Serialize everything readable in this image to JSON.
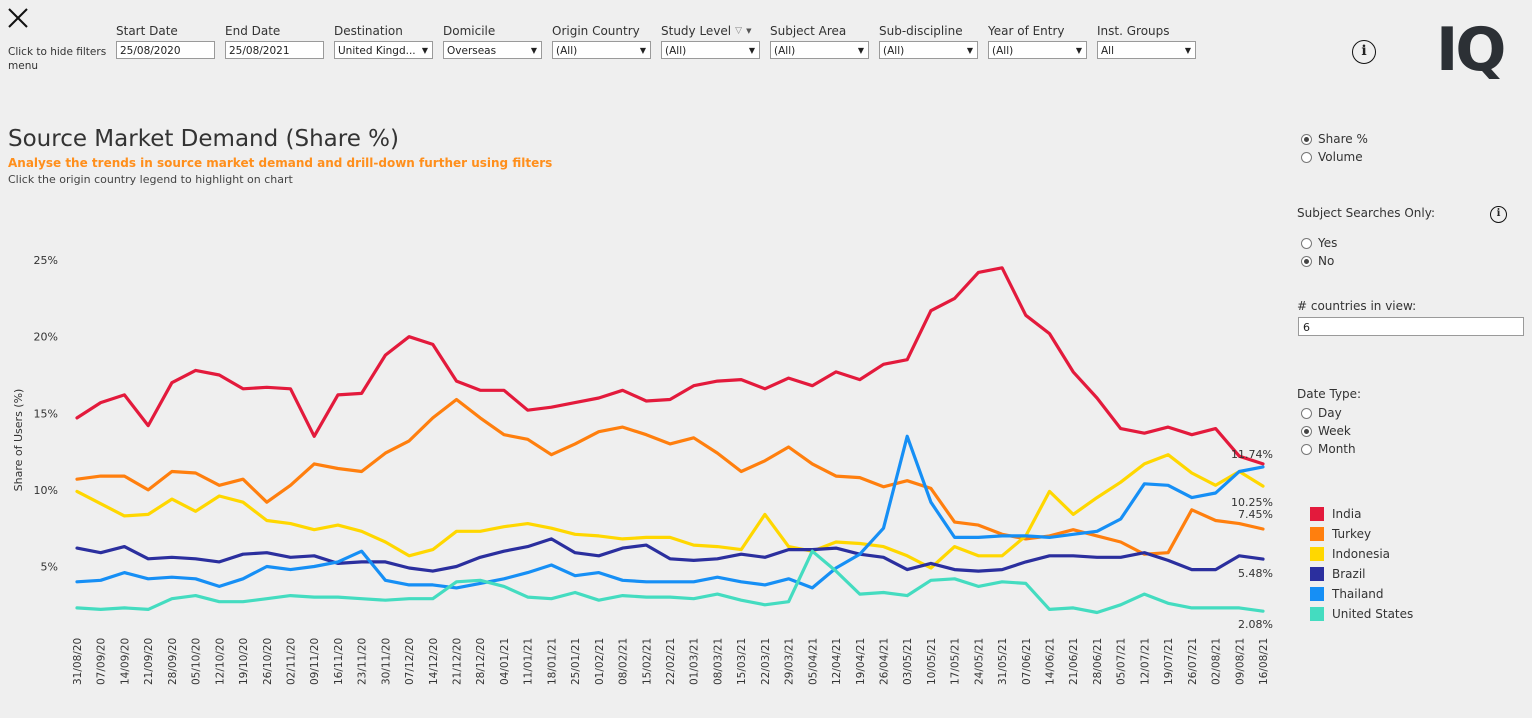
{
  "header": {
    "close_icon": "close-x-icon",
    "hide_filters_text": "Click to hide filters menu",
    "info_icon": "info-circle-icon",
    "logo_text": "IQ"
  },
  "filters": [
    {
      "label": "Start Date",
      "value": "25/08/2020",
      "kind": "text"
    },
    {
      "label": "End Date",
      "value": "25/08/2021",
      "kind": "text"
    },
    {
      "label": "Destination",
      "value": "United Kingd...",
      "kind": "select"
    },
    {
      "label": "Domicile",
      "value": "Overseas",
      "kind": "select"
    },
    {
      "label": "Origin Country",
      "value": "(All)",
      "kind": "select"
    },
    {
      "label": "Study Level",
      "value": "(All)",
      "kind": "select",
      "has_filter_icon": true
    },
    {
      "label": "Subject Area",
      "value": "(All)",
      "kind": "select"
    },
    {
      "label": "Sub-discipline",
      "value": "(All)",
      "kind": "select"
    },
    {
      "label": "Year of Entry",
      "value": "(All)",
      "kind": "select"
    },
    {
      "label": "Inst. Groups",
      "value": "All",
      "kind": "select"
    }
  ],
  "page": {
    "title": "Source Market Demand (Share %)",
    "subtitle": "Analyse the trends in source market demand and drill-down further using filters",
    "hint": "Click the origin country legend to highlight on chart"
  },
  "side_panel": {
    "measure_options": [
      {
        "label": "Share %",
        "selected": true
      },
      {
        "label": "Volume",
        "selected": false
      }
    ],
    "subject_searches_label": "Subject Searches Only:",
    "subject_options": [
      {
        "label": "Yes",
        "selected": false
      },
      {
        "label": "No",
        "selected": true
      }
    ],
    "countries_label": "# countries in view:",
    "countries_value": "6",
    "date_type_label": "Date Type:",
    "date_type_options": [
      {
        "label": "Day",
        "selected": false
      },
      {
        "label": "Week",
        "selected": true
      },
      {
        "label": "Month",
        "selected": false
      }
    ]
  },
  "chart_data": {
    "type": "line",
    "title": "Source Market Demand (Share %)",
    "ylabel": "Share of Users (%)",
    "xlabel": "",
    "ylim": [
      0,
      26
    ],
    "yticks": [
      5,
      10,
      15,
      20,
      25
    ],
    "ytick_labels": [
      "5%",
      "10%",
      "15%",
      "20%",
      "25%"
    ],
    "legend_position": "right",
    "categories": [
      "31/08/20",
      "07/09/20",
      "14/09/20",
      "21/09/20",
      "28/09/20",
      "05/10/20",
      "12/10/20",
      "19/10/20",
      "26/10/20",
      "02/11/20",
      "09/11/20",
      "16/11/20",
      "23/11/20",
      "30/11/20",
      "07/12/20",
      "14/12/20",
      "21/12/20",
      "28/12/20",
      "04/01/21",
      "11/01/21",
      "18/01/21",
      "25/01/21",
      "01/02/21",
      "08/02/21",
      "15/02/21",
      "22/02/21",
      "01/03/21",
      "08/03/21",
      "15/03/21",
      "22/03/21",
      "29/03/21",
      "05/04/21",
      "12/04/21",
      "19/04/21",
      "26/04/21",
      "03/05/21",
      "10/05/21",
      "17/05/21",
      "24/05/21",
      "31/05/21",
      "07/06/21",
      "14/06/21",
      "21/06/21",
      "28/06/21",
      "05/07/21",
      "12/07/21",
      "19/07/21",
      "26/07/21",
      "02/08/21",
      "09/08/21",
      "16/08/21"
    ],
    "series": [
      {
        "name": "India",
        "color": "#e31a3c",
        "end_label": "11.74%",
        "values": [
          14.7,
          15.7,
          16.2,
          14.2,
          17.0,
          17.8,
          17.5,
          16.6,
          16.7,
          16.6,
          13.5,
          16.2,
          16.3,
          18.8,
          20.0,
          19.5,
          17.1,
          16.5,
          16.5,
          15.2,
          15.4,
          15.7,
          16.0,
          16.5,
          15.8,
          15.9,
          16.8,
          17.1,
          17.2,
          16.6,
          17.3,
          16.8,
          17.7,
          17.2,
          18.2,
          18.5,
          21.7,
          22.5,
          24.2,
          24.5,
          21.4,
          20.2,
          17.7,
          16.0,
          14.0,
          13.7,
          14.1,
          13.6,
          14.0,
          12.2,
          11.7
        ]
      },
      {
        "name": "Turkey",
        "color": "#ff7f0e",
        "end_label": "7.45%",
        "values": [
          10.7,
          10.9,
          10.9,
          10.0,
          11.2,
          11.1,
          10.3,
          10.7,
          9.2,
          10.3,
          11.7,
          11.4,
          11.2,
          12.4,
          13.2,
          14.7,
          15.9,
          14.7,
          13.6,
          13.3,
          12.3,
          13.0,
          13.8,
          14.1,
          13.6,
          13.0,
          13.4,
          12.4,
          11.2,
          11.9,
          12.8,
          11.7,
          10.9,
          10.8,
          10.2,
          10.6,
          10.1,
          7.9,
          7.7,
          7.1,
          6.8,
          7.0,
          7.4,
          7.0,
          6.6,
          5.8,
          5.9,
          8.7,
          8.0,
          7.8,
          7.45
        ]
      },
      {
        "name": "Indonesia",
        "color": "#ffd700",
        "end_label": "10.25%",
        "values": [
          9.9,
          9.1,
          8.3,
          8.4,
          9.4,
          8.6,
          9.6,
          9.2,
          8.0,
          7.8,
          7.4,
          7.7,
          7.3,
          6.6,
          5.7,
          6.1,
          7.3,
          7.3,
          7.6,
          7.8,
          7.5,
          7.1,
          7.0,
          6.8,
          6.9,
          6.9,
          6.4,
          6.3,
          6.1,
          8.4,
          6.3,
          6.0,
          6.6,
          6.5,
          6.3,
          5.7,
          4.9,
          6.3,
          5.7,
          5.7,
          7.0,
          9.9,
          8.4,
          9.5,
          10.5,
          11.7,
          12.3,
          11.1,
          10.3,
          11.2,
          10.25
        ]
      },
      {
        "name": "Brazil",
        "color": "#2b2f9e",
        "end_label": "5.48%",
        "values": [
          6.2,
          5.9,
          6.3,
          5.5,
          5.6,
          5.5,
          5.3,
          5.8,
          5.9,
          5.6,
          5.7,
          5.2,
          5.3,
          5.3,
          4.9,
          4.7,
          5.0,
          5.6,
          6.0,
          6.3,
          6.8,
          5.9,
          5.7,
          6.2,
          6.4,
          5.5,
          5.4,
          5.5,
          5.8,
          5.6,
          6.1,
          6.1,
          6.2,
          5.8,
          5.6,
          4.8,
          5.2,
          4.8,
          4.7,
          4.8,
          5.3,
          5.7,
          5.7,
          5.6,
          5.6,
          5.9,
          5.4,
          4.8,
          4.8,
          5.7,
          5.48
        ]
      },
      {
        "name": "Thailand",
        "color": "#168ff5",
        "end_label": "",
        "values": [
          4.0,
          4.1,
          4.6,
          4.2,
          4.3,
          4.2,
          3.7,
          4.2,
          5.0,
          4.8,
          5.0,
          5.3,
          6.0,
          4.1,
          3.8,
          3.8,
          3.6,
          3.9,
          4.2,
          4.6,
          5.1,
          4.4,
          4.6,
          4.1,
          4.0,
          4.0,
          4.0,
          4.3,
          4.0,
          3.8,
          4.2,
          3.6,
          4.9,
          5.8,
          7.5,
          13.5,
          9.2,
          6.9,
          6.9,
          7.0,
          7.0,
          6.9,
          7.1,
          7.3,
          8.1,
          10.4,
          10.3,
          9.5,
          9.8,
          11.2,
          11.5
        ]
      },
      {
        "name": "United States",
        "color": "#44dcc0",
        "end_label": "2.08%",
        "values": [
          2.3,
          2.2,
          2.3,
          2.2,
          2.9,
          3.1,
          2.7,
          2.7,
          2.9,
          3.1,
          3.0,
          3.0,
          2.9,
          2.8,
          2.9,
          2.9,
          4.0,
          4.1,
          3.7,
          3.0,
          2.9,
          3.3,
          2.8,
          3.1,
          3.0,
          3.0,
          2.9,
          3.2,
          2.8,
          2.5,
          2.7,
          6.0,
          4.7,
          3.2,
          3.3,
          3.1,
          4.1,
          4.2,
          3.7,
          4.0,
          3.9,
          2.2,
          2.3,
          2.0,
          2.5,
          3.2,
          2.6,
          2.3,
          2.3,
          2.3,
          2.08
        ]
      }
    ]
  }
}
